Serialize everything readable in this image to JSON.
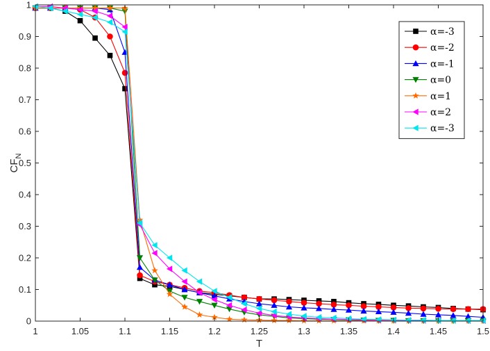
{
  "chart_data": {
    "type": "line",
    "title": "",
    "xlabel": "T",
    "ylabel_main": "CF",
    "ylabel_sub": "N",
    "xlim": [
      1,
      1.5
    ],
    "ylim": [
      0,
      1
    ],
    "xticks": [
      "1",
      "1.05",
      "1.1",
      "1.15",
      "1.2",
      "1.25",
      "1.3",
      "1.35",
      "1.4",
      "1.45",
      "1.5"
    ],
    "yticks": [
      "0",
      "0.1",
      "0.2",
      "0.3",
      "0.4",
      "0.5",
      "0.6",
      "0.7",
      "0.8",
      "0.9",
      "1"
    ],
    "grid": false,
    "legend_position": "top-right",
    "x": [
      1.0,
      1.0167,
      1.0333,
      1.05,
      1.0667,
      1.0833,
      1.1,
      1.1167,
      1.1333,
      1.15,
      1.1667,
      1.1833,
      1.2,
      1.2167,
      1.2333,
      1.25,
      1.2667,
      1.2833,
      1.3,
      1.3167,
      1.3333,
      1.35,
      1.3667,
      1.3833,
      1.4,
      1.4167,
      1.4333,
      1.45,
      1.4667,
      1.4833,
      1.5
    ],
    "series": [
      {
        "name": "α=-3",
        "color": "#000000",
        "marker": "square",
        "values": [
          0.99,
          0.99,
          0.98,
          0.95,
          0.895,
          0.84,
          0.735,
          0.135,
          0.115,
          0.11,
          0.1,
          0.09,
          0.085,
          0.08,
          0.075,
          0.07,
          0.07,
          0.068,
          0.066,
          0.064,
          0.062,
          0.058,
          0.055,
          0.053,
          0.05,
          0.048,
          0.045,
          0.043,
          0.04,
          0.038,
          0.036
        ]
      },
      {
        "name": "α=-2",
        "color": "#ff0000",
        "marker": "circle",
        "values": [
          0.99,
          0.99,
          0.99,
          0.985,
          0.96,
          0.9,
          0.785,
          0.145,
          0.125,
          0.115,
          0.105,
          0.095,
          0.09,
          0.082,
          0.075,
          0.07,
          0.066,
          0.062,
          0.058,
          0.055,
          0.052,
          0.05,
          0.047,
          0.045,
          0.043,
          0.041,
          0.04,
          0.039,
          0.038,
          0.038,
          0.038
        ]
      },
      {
        "name": "α=-1",
        "color": "#0000ff",
        "marker": "triangle-up",
        "values": [
          0.99,
          0.99,
          0.99,
          0.99,
          0.99,
          0.985,
          0.85,
          0.17,
          0.13,
          0.115,
          0.1,
          0.09,
          0.08,
          0.07,
          0.062,
          0.055,
          0.05,
          0.045,
          0.042,
          0.04,
          0.037,
          0.035,
          0.032,
          0.03,
          0.028,
          0.025,
          0.022,
          0.02,
          0.018,
          0.015,
          0.012
        ]
      },
      {
        "name": "α=0",
        "color": "#008000",
        "marker": "triangle-down",
        "values": [
          0.99,
          0.99,
          0.99,
          0.99,
          0.99,
          0.99,
          0.98,
          0.2,
          0.13,
          0.095,
          0.075,
          0.062,
          0.05,
          0.038,
          0.028,
          0.02,
          0.015,
          0.01,
          0.008,
          0.006,
          0.005,
          0.004,
          0.003,
          0.002,
          0.002,
          0.001,
          0.001,
          0.001,
          0.001,
          0.001,
          0.001
        ]
      },
      {
        "name": "α=1",
        "color": "#ff6a00",
        "marker": "star",
        "values": [
          0.99,
          0.99,
          0.99,
          0.99,
          0.99,
          0.99,
          0.99,
          0.32,
          0.16,
          0.085,
          0.045,
          0.02,
          0.012,
          0.006,
          0.004,
          0.003,
          0.002,
          0.002,
          0.001,
          0.001,
          0.001,
          0.001,
          0.001,
          0.001,
          0.001,
          0.001,
          0.001,
          0.001,
          0.001,
          0.001,
          0.001
        ]
      },
      {
        "name": "α=2",
        "color": "#ff00ff",
        "marker": "triangle-left",
        "values": [
          0.995,
          0.995,
          0.99,
          0.985,
          0.98,
          0.965,
          0.93,
          0.305,
          0.215,
          0.165,
          0.125,
          0.09,
          0.068,
          0.05,
          0.036,
          0.025,
          0.018,
          0.013,
          0.01,
          0.008,
          0.006,
          0.005,
          0.004,
          0.003,
          0.003,
          0.002,
          0.002,
          0.002,
          0.002,
          0.001,
          0.001
        ]
      },
      {
        "name": "α=-3",
        "color": "#00e5ee",
        "marker": "triangle-left",
        "values": [
          0.995,
          0.99,
          0.98,
          0.97,
          0.96,
          0.945,
          0.915,
          0.31,
          0.24,
          0.2,
          0.16,
          0.125,
          0.095,
          0.075,
          0.055,
          0.04,
          0.03,
          0.022,
          0.016,
          0.012,
          0.01,
          0.008,
          0.006,
          0.005,
          0.004,
          0.003,
          0.003,
          0.002,
          0.002,
          0.002,
          0.002
        ]
      }
    ]
  }
}
